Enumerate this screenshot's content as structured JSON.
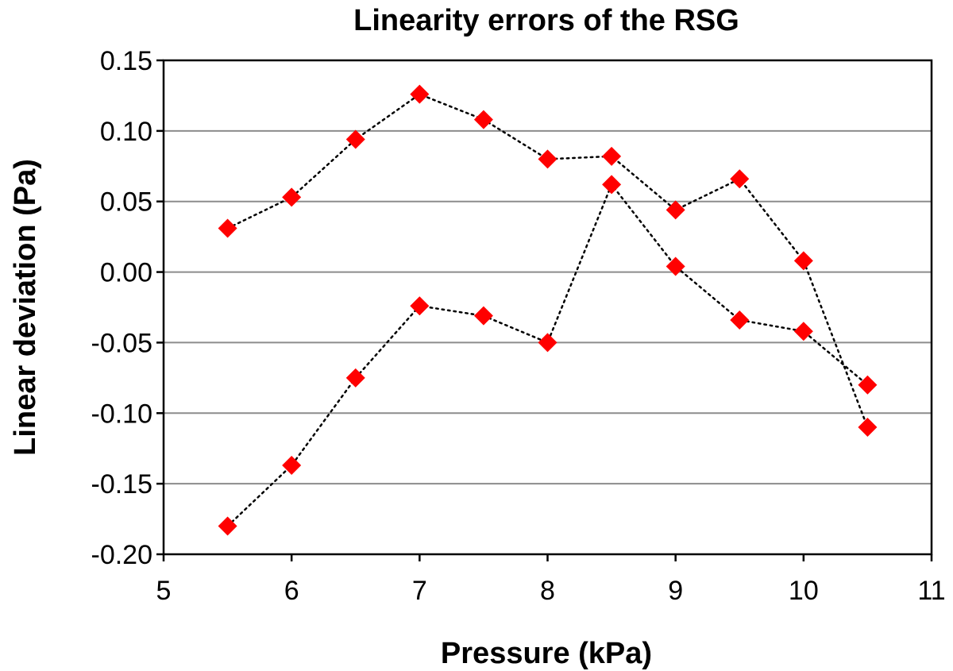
{
  "chart_data": {
    "type": "scatter",
    "title": "Linearity errors of the RSG",
    "xlabel": "Pressure (kPa)",
    "ylabel": "Linear deviation (Pa)",
    "xlim": [
      5,
      11
    ],
    "ylim": [
      -0.2,
      0.15
    ],
    "x_ticks": [
      5,
      6,
      7,
      8,
      9,
      10,
      11
    ],
    "x_tick_labels": [
      "5",
      "6",
      "7",
      "8",
      "9",
      "10",
      "11"
    ],
    "y_ticks": [
      0.15,
      0.1,
      0.05,
      0.0,
      -0.05,
      -0.1,
      -0.15,
      -0.2
    ],
    "y_tick_labels": [
      "0.15",
      "0.10",
      "0.05",
      "0.00",
      "-0.05",
      "-0.10",
      "-0.15",
      "-0.20"
    ],
    "grid": "horizontal",
    "legend": "none",
    "marker_color": "#ff0000",
    "line_style": "dotted",
    "line_color": "#000000",
    "series": [
      {
        "x": [
          5.5,
          6,
          6.5,
          7,
          7.5,
          8,
          8.5,
          9,
          9.5,
          10,
          10.5
        ],
        "y": [
          0.031,
          0.053,
          0.094,
          0.126,
          0.108,
          0.08,
          0.082,
          0.044,
          0.066,
          0.008,
          -0.11
        ]
      },
      {
        "x": [
          5.5,
          6,
          6.5,
          7,
          7.5,
          8,
          8.5,
          9,
          9.5,
          10,
          10.5
        ],
        "y": [
          -0.18,
          -0.137,
          -0.075,
          -0.024,
          -0.031,
          -0.05,
          0.062,
          0.004,
          -0.034,
          -0.042,
          -0.08
        ]
      }
    ]
  }
}
